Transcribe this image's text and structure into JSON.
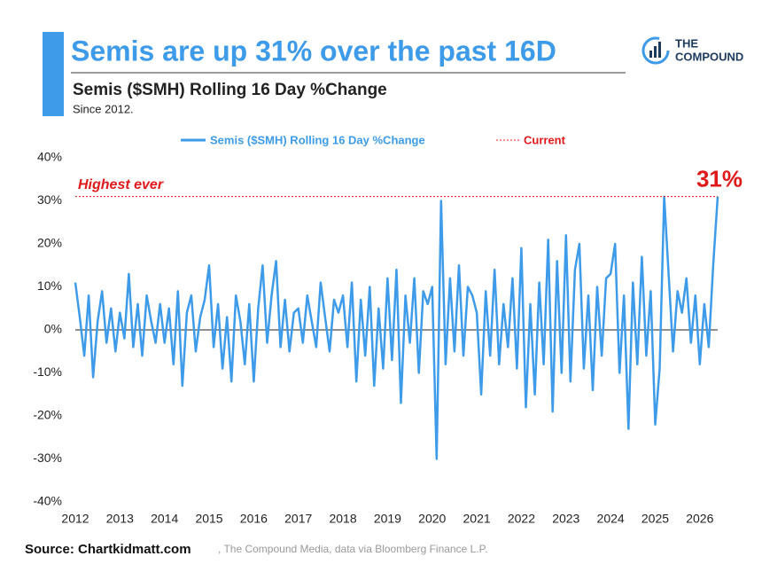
{
  "chart_data": {
    "type": "line",
    "title": "Semis are up 31% over the past 16D",
    "subtitle": "Semis ($SMH) Rolling 16 Day %Change",
    "note": "Since 2012.",
    "logo": [
      "THE",
      "COMPOUND"
    ],
    "source": "Source: Chartkidmatt.com",
    "source_detail": ", The Compound Media, data via Bloomberg Finance L.P.",
    "x": [
      2012.0,
      2012.1,
      2012.2,
      2012.3,
      2012.4,
      2012.5,
      2012.6,
      2012.7,
      2012.8,
      2012.9,
      2013.0,
      2013.1,
      2013.2,
      2013.3,
      2013.4,
      2013.5,
      2013.6,
      2013.7,
      2013.8,
      2013.9,
      2014.0,
      2014.1,
      2014.2,
      2014.3,
      2014.4,
      2014.5,
      2014.6,
      2014.7,
      2014.8,
      2014.9,
      2015.0,
      2015.1,
      2015.2,
      2015.3,
      2015.4,
      2015.5,
      2015.6,
      2015.7,
      2015.8,
      2015.9,
      2016.0,
      2016.1,
      2016.2,
      2016.3,
      2016.4,
      2016.5,
      2016.6,
      2016.7,
      2016.8,
      2016.9,
      2017.0,
      2017.1,
      2017.2,
      2017.3,
      2017.4,
      2017.5,
      2017.6,
      2017.7,
      2017.8,
      2017.9,
      2018.0,
      2018.1,
      2018.2,
      2018.3,
      2018.4,
      2018.5,
      2018.6,
      2018.7,
      2018.8,
      2018.9,
      2019.0,
      2019.1,
      2019.2,
      2019.3,
      2019.4,
      2019.5,
      2019.6,
      2019.7,
      2019.8,
      2019.9,
      2020.0,
      2020.1,
      2020.2,
      2020.3,
      2020.4,
      2020.5,
      2020.6,
      2020.7,
      2020.8,
      2020.9,
      2021.0,
      2021.1,
      2021.2,
      2021.3,
      2021.4,
      2021.5,
      2021.6,
      2021.7,
      2021.8,
      2021.9,
      2022.0,
      2022.1,
      2022.2,
      2022.3,
      2022.4,
      2022.5,
      2022.6,
      2022.7,
      2022.8,
      2022.9,
      2023.0,
      2023.1,
      2023.2,
      2023.3,
      2023.4,
      2023.5,
      2023.6,
      2023.7,
      2023.8,
      2023.9,
      2024.0,
      2024.1,
      2024.2,
      2024.3,
      2024.4,
      2024.5,
      2024.6,
      2024.7,
      2024.8,
      2024.9,
      2025.0,
      2025.1,
      2025.2,
      2025.3,
      2025.4,
      2025.5,
      2025.6,
      2025.7,
      2025.8,
      2025.9,
      2026.0,
      2026.1,
      2026.2,
      2026.3,
      2026.4
    ],
    "series": [
      {
        "name": "Semis ($SMH) Rolling 16 Day %Change",
        "color": "#3d9be9",
        "values": [
          11,
          3,
          -6,
          8,
          -11,
          2,
          9,
          -3,
          5,
          -5,
          4,
          -2,
          13,
          -4,
          6,
          -6,
          8,
          2,
          -3,
          6,
          -3,
          5,
          -8,
          9,
          -13,
          4,
          8,
          -5,
          3,
          7,
          15,
          -4,
          6,
          -9,
          3,
          -12,
          8,
          2,
          -8,
          6,
          -12,
          5,
          15,
          -3,
          8,
          16,
          -4,
          7,
          -5,
          4,
          5,
          -3,
          8,
          2,
          -4,
          11,
          3,
          -5,
          7,
          4,
          8,
          -4,
          11,
          -12,
          7,
          -6,
          10,
          -13,
          5,
          -9,
          12,
          -7,
          14,
          -17,
          8,
          -3,
          12,
          -10,
          9,
          6,
          10,
          -30,
          30,
          -8,
          12,
          -5,
          15,
          -6,
          10,
          8,
          4,
          -15,
          9,
          -6,
          14,
          -8,
          6,
          -4,
          12,
          -9,
          19,
          -18,
          6,
          -15,
          11,
          -8,
          21,
          -19,
          16,
          -10,
          22,
          -12,
          14,
          20,
          -9,
          8,
          -14,
          10,
          -6,
          12,
          13,
          20,
          -10,
          8,
          -23,
          11,
          -8,
          17,
          -6,
          9,
          -22,
          -9,
          31,
          13,
          -5,
          9,
          4,
          12,
          -3,
          8,
          -8,
          6,
          -4,
          15,
          31
        ]
      }
    ],
    "reference_line": {
      "name": "Current",
      "value": 31,
      "label": "31%",
      "annotation": "Highest ever",
      "color": "#e0191b"
    },
    "xlim": [
      2012,
      2026.5
    ],
    "xticks": [
      2012,
      2013,
      2014,
      2015,
      2016,
      2017,
      2018,
      2019,
      2020,
      2021,
      2022,
      2023,
      2024,
      2025,
      2026
    ],
    "ylim": [
      -40,
      40
    ],
    "yticks": [
      {
        "value": -40,
        "label": "-40%"
      },
      {
        "value": -30,
        "label": "-30%"
      },
      {
        "value": -20,
        "label": "-20%"
      },
      {
        "value": -10,
        "label": "-10%"
      },
      {
        "value": 0,
        "label": "0%"
      },
      {
        "value": 10,
        "label": "10%"
      },
      {
        "value": 20,
        "label": "20%"
      },
      {
        "value": 30,
        "label": "30%"
      },
      {
        "value": 40,
        "label": "40%"
      }
    ],
    "grid": false
  }
}
